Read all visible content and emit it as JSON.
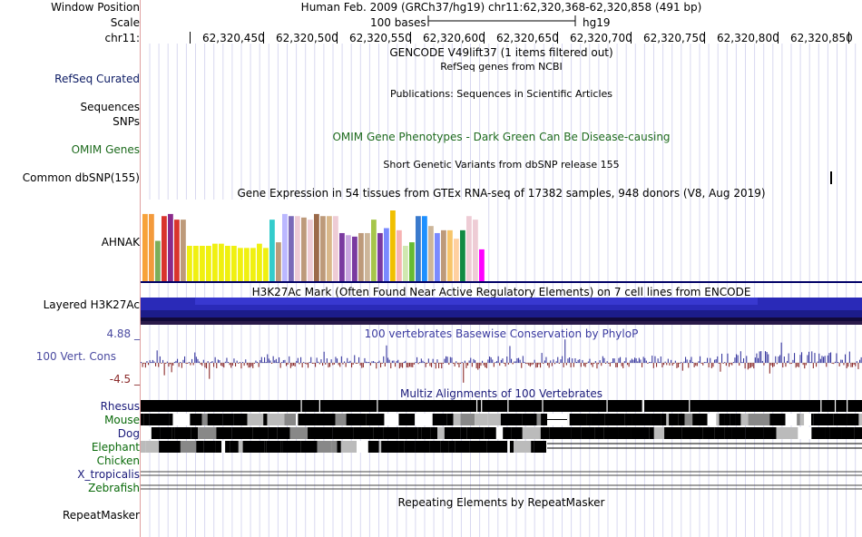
{
  "header": {
    "window_label": "Window Position",
    "window_value": "Human Feb. 2009 (GRCh37/hg19)   chr11:62,320,368-62,320,858 (491 bp)",
    "scale_label": "Scale",
    "scale_text": "100 bases",
    "scale_db": "hg19",
    "chrom_label": "chr11:",
    "ruler_ticks": [
      "62,320,450",
      "62,320,500",
      "62,320,550",
      "62,320,600",
      "62,320,650",
      "62,320,700",
      "62,320,750",
      "62,320,800",
      "62,320,850"
    ]
  },
  "tracks": {
    "gencode_title": "GENCODE V49lift37 (1 items filtered out)",
    "refseq_title": "RefSeq genes from NCBI",
    "refseq_label": "RefSeq Curated",
    "pubs_title": "Publications: Sequences in Scientific Articles",
    "sequences_label": "Sequences",
    "snps_label": "SNPs",
    "omim_title": "OMIM Gene Phenotypes - Dark Green Can Be Disease-causing",
    "omim_label": "OMIM Genes",
    "dbsnp_title": "Short Genetic Variants from dbSNP release 155",
    "dbsnp_label": "Common dbSNP(155)",
    "gtex_title": "Gene Expression in 54 tissues from GTEx RNA-seq of 17382 samples, 948 donors (V8, Aug 2019)",
    "gtex_gene": "AHNAK",
    "h3k27_title": "H3K27Ac Mark (Often Found Near Active Regulatory Elements) on 7 cell lines from ENCODE",
    "h3k27_label": "Layered H3K27Ac",
    "cons_title": "100 vertebrates Basewise Conservation by PhyloP",
    "cons_label": "100 Vert. Cons",
    "cons_max": "4.88 _",
    "cons_min": "-4.5 _",
    "multiz_title": "Multiz Alignments of 100 Vertebrates",
    "species": [
      "Rhesus",
      "Mouse",
      "Dog",
      "Elephant",
      "Chicken",
      "X_tropicalis",
      "Zebrafish"
    ],
    "rmsk_title": "Repeating Elements by RepeatMasker",
    "rmsk_label": "RepeatMasker"
  },
  "colors": {
    "refseq": "#0b1a63",
    "omim": "#1e6b1e",
    "cons_label": "#4a4aa0",
    "cons_pos": "#3a3aa0",
    "cons_neg": "#8b2a2a",
    "h3k27": "#2a2ab8",
    "species_blue": "#1a1a7a",
    "species_green": "#0a6a0a",
    "gtex_border": "#000066"
  },
  "gtex_bars": [
    {
      "c": "#f7a23a",
      "v": 0.95
    },
    {
      "c": "#f39a3c",
      "v": 0.95
    },
    {
      "c": "#7cae5a",
      "v": 0.57
    },
    {
      "c": "#d9342c",
      "v": 0.92
    },
    {
      "c": "#8a2a8a",
      "v": 0.95
    },
    {
      "c": "#d9342c",
      "v": 0.87
    },
    {
      "c": "#bd9a7a",
      "v": 0.87
    },
    {
      "c": "#f0f010",
      "v": 0.5
    },
    {
      "c": "#f0f010",
      "v": 0.5
    },
    {
      "c": "#f0f010",
      "v": 0.5
    },
    {
      "c": "#f0f010",
      "v": 0.5
    },
    {
      "c": "#f0f010",
      "v": 0.53
    },
    {
      "c": "#f0f010",
      "v": 0.53
    },
    {
      "c": "#f0f010",
      "v": 0.5
    },
    {
      "c": "#f0f010",
      "v": 0.5
    },
    {
      "c": "#f0f010",
      "v": 0.47
    },
    {
      "c": "#f0f010",
      "v": 0.47
    },
    {
      "c": "#f0f010",
      "v": 0.47
    },
    {
      "c": "#f0f010",
      "v": 0.53
    },
    {
      "c": "#f0f010",
      "v": 0.47
    },
    {
      "c": "#33cccc",
      "v": 0.87
    },
    {
      "c": "#bd9a7a",
      "v": 0.55
    },
    {
      "c": "#bbb8ff",
      "v": 0.95
    },
    {
      "c": "#7a6ab8",
      "v": 0.92
    },
    {
      "c": "#eeccd5",
      "v": 0.92
    },
    {
      "c": "#bd9a7a",
      "v": 0.9
    },
    {
      "c": "#eeccd5",
      "v": 0.87
    },
    {
      "c": "#9b6a4a",
      "v": 0.95
    },
    {
      "c": "#bd9a7a",
      "v": 0.92
    },
    {
      "c": "#d9b88a",
      "v": 0.92
    },
    {
      "c": "#eeccd5",
      "v": 0.92
    },
    {
      "c": "#7a3aa0",
      "v": 0.68
    },
    {
      "c": "#c9a6e0",
      "v": 0.65
    },
    {
      "c": "#7a3aa0",
      "v": 0.63
    },
    {
      "c": "#bd9a7a",
      "v": 0.68
    },
    {
      "c": "#cdb69a",
      "v": 0.68
    },
    {
      "c": "#a6c64a",
      "v": 0.87
    },
    {
      "c": "#7a3aa0",
      "v": 0.68
    },
    {
      "c": "#7a8aff",
      "v": 0.75
    },
    {
      "c": "#f0c000",
      "v": 1.0
    },
    {
      "c": "#f7b3b3",
      "v": 0.72
    },
    {
      "c": "#d0e8b0",
      "v": 0.5
    },
    {
      "c": "#66bb33",
      "v": 0.55
    },
    {
      "c": "#3a7acc",
      "v": 0.92
    },
    {
      "c": "#1e90ff",
      "v": 0.92
    },
    {
      "c": "#cdb69a",
      "v": 0.78
    },
    {
      "c": "#7a8aff",
      "v": 0.68
    },
    {
      "c": "#bd9a7a",
      "v": 0.72
    },
    {
      "c": "#f7c56a",
      "v": 0.72
    },
    {
      "c": "#ffd0a0",
      "v": 0.6
    },
    {
      "c": "#118a44",
      "v": 0.72
    },
    {
      "c": "#eeccd5",
      "v": 0.92
    },
    {
      "c": "#eeccd5",
      "v": 0.87
    },
    {
      "c": "#ff00ff",
      "v": 0.45
    }
  ]
}
